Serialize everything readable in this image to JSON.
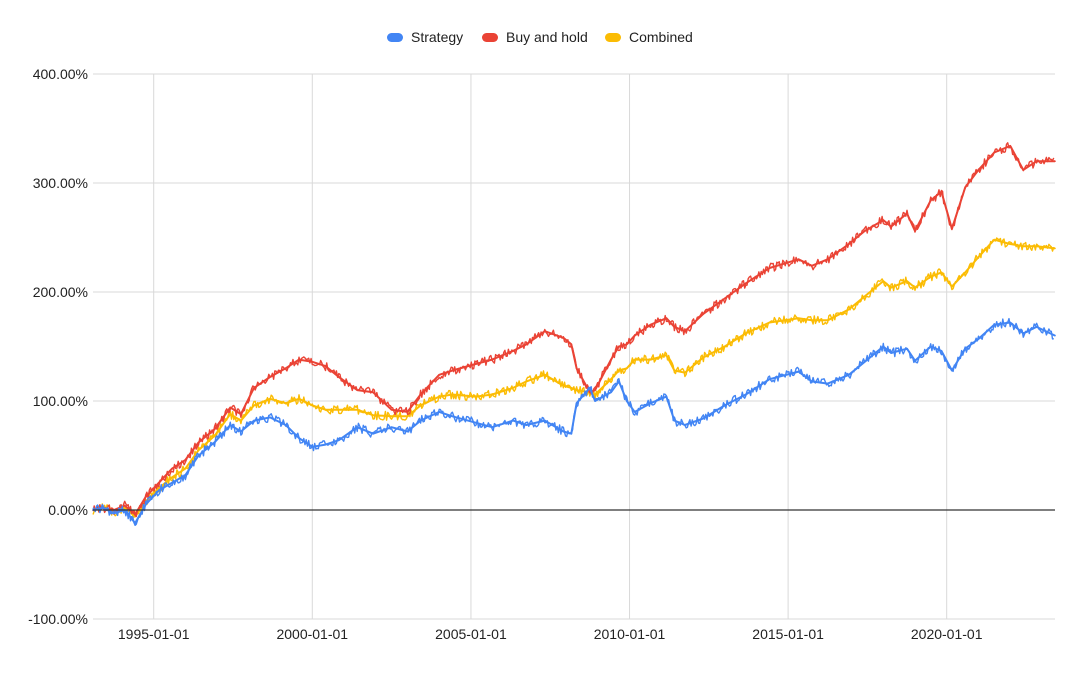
{
  "legend": {
    "position": "top-center",
    "items": [
      {
        "name": "Strategy",
        "color": "#4285F4"
      },
      {
        "name": "Buy and hold",
        "color": "#EA4335"
      },
      {
        "name": "Combined",
        "color": "#FBBC04"
      }
    ]
  },
  "chart_data": {
    "type": "line",
    "title": "",
    "xlabel": "",
    "ylabel": "",
    "x_ticks": [
      "1995-01-01",
      "2000-01-01",
      "2005-01-01",
      "2010-01-01",
      "2015-01-01",
      "2020-01-01"
    ],
    "y_ticks": [
      "-100.00%",
      "0.00%",
      "100.00%",
      "200.00%",
      "300.00%",
      "400.00%"
    ],
    "xlim": [
      "1993-02-01",
      "2023-06-01"
    ],
    "ylim": [
      -100,
      400
    ],
    "y_unit": "%",
    "grid": true,
    "zero_line": true,
    "series": [
      {
        "name": "Strategy",
        "color": "#4285F4",
        "points": [
          [
            "1993-02-01",
            0
          ],
          [
            "1993-06-01",
            2
          ],
          [
            "1993-10-01",
            -3
          ],
          [
            "1994-02-01",
            0
          ],
          [
            "1994-06-01",
            -12
          ],
          [
            "1994-10-01",
            5
          ],
          [
            "1995-03-01",
            18
          ],
          [
            "1995-08-01",
            25
          ],
          [
            "1996-01-01",
            32
          ],
          [
            "1996-06-01",
            50
          ],
          [
            "1996-12-01",
            62
          ],
          [
            "1997-06-01",
            78
          ],
          [
            "1997-10-01",
            72
          ],
          [
            "1998-03-01",
            82
          ],
          [
            "1998-09-01",
            85
          ],
          [
            "1999-03-01",
            78
          ],
          [
            "1999-08-01",
            66
          ],
          [
            "2000-01-01",
            58
          ],
          [
            "2000-06-01",
            60
          ],
          [
            "2000-11-01",
            64
          ],
          [
            "2001-06-01",
            76
          ],
          [
            "2001-12-01",
            70
          ],
          [
            "2002-07-01",
            76
          ],
          [
            "2003-01-01",
            72
          ],
          [
            "2003-06-01",
            82
          ],
          [
            "2004-01-01",
            90
          ],
          [
            "2004-06-01",
            86
          ],
          [
            "2005-03-01",
            80
          ],
          [
            "2005-09-01",
            76
          ],
          [
            "2006-05-01",
            82
          ],
          [
            "2006-10-01",
            78
          ],
          [
            "2007-05-01",
            82
          ],
          [
            "2007-12-01",
            72
          ],
          [
            "2008-03-01",
            70
          ],
          [
            "2008-05-01",
            98
          ],
          [
            "2008-10-01",
            112
          ],
          [
            "2008-12-01",
            100
          ],
          [
            "2009-06-01",
            108
          ],
          [
            "2009-09-01",
            118
          ],
          [
            "2009-12-01",
            100
          ],
          [
            "2010-03-01",
            90
          ],
          [
            "2010-09-01",
            98
          ],
          [
            "2011-03-01",
            104
          ],
          [
            "2011-06-01",
            82
          ],
          [
            "2011-10-01",
            78
          ],
          [
            "2012-05-01",
            84
          ],
          [
            "2013-01-01",
            96
          ],
          [
            "2013-09-01",
            106
          ],
          [
            "2014-06-01",
            120
          ],
          [
            "2015-05-01",
            127
          ],
          [
            "2015-10-01",
            118
          ],
          [
            "2016-04-01",
            116
          ],
          [
            "2016-12-01",
            124
          ],
          [
            "2017-06-01",
            136
          ],
          [
            "2018-01-01",
            150
          ],
          [
            "2018-04-01",
            144
          ],
          [
            "2018-10-01",
            148
          ],
          [
            "2019-01-01",
            137
          ],
          [
            "2019-07-01",
            150
          ],
          [
            "2019-11-01",
            146
          ],
          [
            "2020-03-01",
            128
          ],
          [
            "2020-08-01",
            148
          ],
          [
            "2021-01-01",
            157
          ],
          [
            "2021-07-01",
            170
          ],
          [
            "2022-01-01",
            172
          ],
          [
            "2022-06-01",
            162
          ],
          [
            "2022-11-01",
            168
          ],
          [
            "2023-06-01",
            160
          ]
        ]
      },
      {
        "name": "Buy and hold",
        "color": "#EA4335",
        "points": [
          [
            "1993-02-01",
            0
          ],
          [
            "1993-06-01",
            2
          ],
          [
            "1993-10-01",
            0
          ],
          [
            "1994-02-01",
            4
          ],
          [
            "1994-06-01",
            -4
          ],
          [
            "1994-10-01",
            12
          ],
          [
            "1995-03-01",
            25
          ],
          [
            "1995-08-01",
            38
          ],
          [
            "1996-01-01",
            46
          ],
          [
            "1996-06-01",
            62
          ],
          [
            "1996-12-01",
            74
          ],
          [
            "1997-06-01",
            94
          ],
          [
            "1997-10-01",
            88
          ],
          [
            "1998-03-01",
            112
          ],
          [
            "1998-09-01",
            122
          ],
          [
            "1999-03-01",
            130
          ],
          [
            "1999-08-01",
            138
          ],
          [
            "2000-01-01",
            136
          ],
          [
            "2000-06-01",
            132
          ],
          [
            "2000-11-01",
            122
          ],
          [
            "2001-06-01",
            110
          ],
          [
            "2001-12-01",
            108
          ],
          [
            "2002-07-01",
            92
          ],
          [
            "2003-01-01",
            90
          ],
          [
            "2003-06-01",
            106
          ],
          [
            "2004-01-01",
            124
          ],
          [
            "2004-06-01",
            128
          ],
          [
            "2005-03-01",
            134
          ],
          [
            "2005-09-01",
            138
          ],
          [
            "2006-05-01",
            146
          ],
          [
            "2006-10-01",
            152
          ],
          [
            "2007-05-01",
            164
          ],
          [
            "2007-12-01",
            158
          ],
          [
            "2008-03-01",
            152
          ],
          [
            "2008-05-01",
            130
          ],
          [
            "2008-10-01",
            108
          ],
          [
            "2008-12-01",
            110
          ],
          [
            "2009-06-01",
            138
          ],
          [
            "2009-09-01",
            150
          ],
          [
            "2009-12-01",
            152
          ],
          [
            "2010-03-01",
            160
          ],
          [
            "2010-09-01",
            170
          ],
          [
            "2011-03-01",
            176
          ],
          [
            "2011-06-01",
            168
          ],
          [
            "2011-10-01",
            164
          ],
          [
            "2012-05-01",
            180
          ],
          [
            "2013-01-01",
            194
          ],
          [
            "2013-09-01",
            208
          ],
          [
            "2014-06-01",
            222
          ],
          [
            "2015-05-01",
            230
          ],
          [
            "2015-10-01",
            224
          ],
          [
            "2016-04-01",
            230
          ],
          [
            "2016-12-01",
            244
          ],
          [
            "2017-06-01",
            256
          ],
          [
            "2018-01-01",
            266
          ],
          [
            "2018-04-01",
            260
          ],
          [
            "2018-10-01",
            272
          ],
          [
            "2019-01-01",
            256
          ],
          [
            "2019-07-01",
            284
          ],
          [
            "2019-11-01",
            292
          ],
          [
            "2020-03-01",
            258
          ],
          [
            "2020-08-01",
            296
          ],
          [
            "2021-01-01",
            312
          ],
          [
            "2021-07-01",
            328
          ],
          [
            "2022-01-01",
            334
          ],
          [
            "2022-06-01",
            312
          ],
          [
            "2022-11-01",
            320
          ],
          [
            "2023-06-01",
            320
          ]
        ]
      },
      {
        "name": "Combined",
        "color": "#FBBC04",
        "points": [
          [
            "1993-02-01",
            0
          ],
          [
            "1993-06-01",
            3
          ],
          [
            "1993-10-01",
            -2
          ],
          [
            "1994-02-01",
            2
          ],
          [
            "1994-06-01",
            -6
          ],
          [
            "1994-10-01",
            8
          ],
          [
            "1995-03-01",
            20
          ],
          [
            "1995-08-01",
            30
          ],
          [
            "1996-01-01",
            38
          ],
          [
            "1996-06-01",
            55
          ],
          [
            "1996-12-01",
            68
          ],
          [
            "1997-06-01",
            88
          ],
          [
            "1997-10-01",
            82
          ],
          [
            "1998-03-01",
            96
          ],
          [
            "1998-09-01",
            102
          ],
          [
            "1999-03-01",
            98
          ],
          [
            "1999-08-01",
            102
          ],
          [
            "2000-01-01",
            96
          ],
          [
            "2000-06-01",
            92
          ],
          [
            "2000-11-01",
            92
          ],
          [
            "2001-06-01",
            92
          ],
          [
            "2001-12-01",
            87
          ],
          [
            "2002-07-01",
            86
          ],
          [
            "2003-01-01",
            86
          ],
          [
            "2003-06-01",
            96
          ],
          [
            "2004-01-01",
            104
          ],
          [
            "2004-06-01",
            106
          ],
          [
            "2005-03-01",
            104
          ],
          [
            "2005-09-01",
            106
          ],
          [
            "2006-05-01",
            112
          ],
          [
            "2006-10-01",
            118
          ],
          [
            "2007-05-01",
            124
          ],
          [
            "2007-12-01",
            114
          ],
          [
            "2008-03-01",
            112
          ],
          [
            "2008-05-01",
            110
          ],
          [
            "2008-10-01",
            108
          ],
          [
            "2008-12-01",
            106
          ],
          [
            "2009-06-01",
            120
          ],
          [
            "2009-09-01",
            128
          ],
          [
            "2009-12-01",
            130
          ],
          [
            "2010-03-01",
            138
          ],
          [
            "2010-09-01",
            138
          ],
          [
            "2011-03-01",
            142
          ],
          [
            "2011-06-01",
            128
          ],
          [
            "2011-10-01",
            126
          ],
          [
            "2012-05-01",
            140
          ],
          [
            "2013-01-01",
            150
          ],
          [
            "2013-09-01",
            162
          ],
          [
            "2014-06-01",
            172
          ],
          [
            "2015-05-01",
            176
          ],
          [
            "2015-10-01",
            174
          ],
          [
            "2016-04-01",
            174
          ],
          [
            "2016-12-01",
            184
          ],
          [
            "2017-06-01",
            196
          ],
          [
            "2018-01-01",
            210
          ],
          [
            "2018-04-01",
            204
          ],
          [
            "2018-10-01",
            210
          ],
          [
            "2019-01-01",
            204
          ],
          [
            "2019-07-01",
            214
          ],
          [
            "2019-11-01",
            218
          ],
          [
            "2020-03-01",
            205
          ],
          [
            "2020-08-01",
            218
          ],
          [
            "2021-01-01",
            232
          ],
          [
            "2021-07-01",
            248
          ],
          [
            "2022-01-01",
            244
          ],
          [
            "2022-06-01",
            242
          ],
          [
            "2022-11-01",
            242
          ],
          [
            "2023-06-01",
            240
          ]
        ]
      }
    ]
  }
}
